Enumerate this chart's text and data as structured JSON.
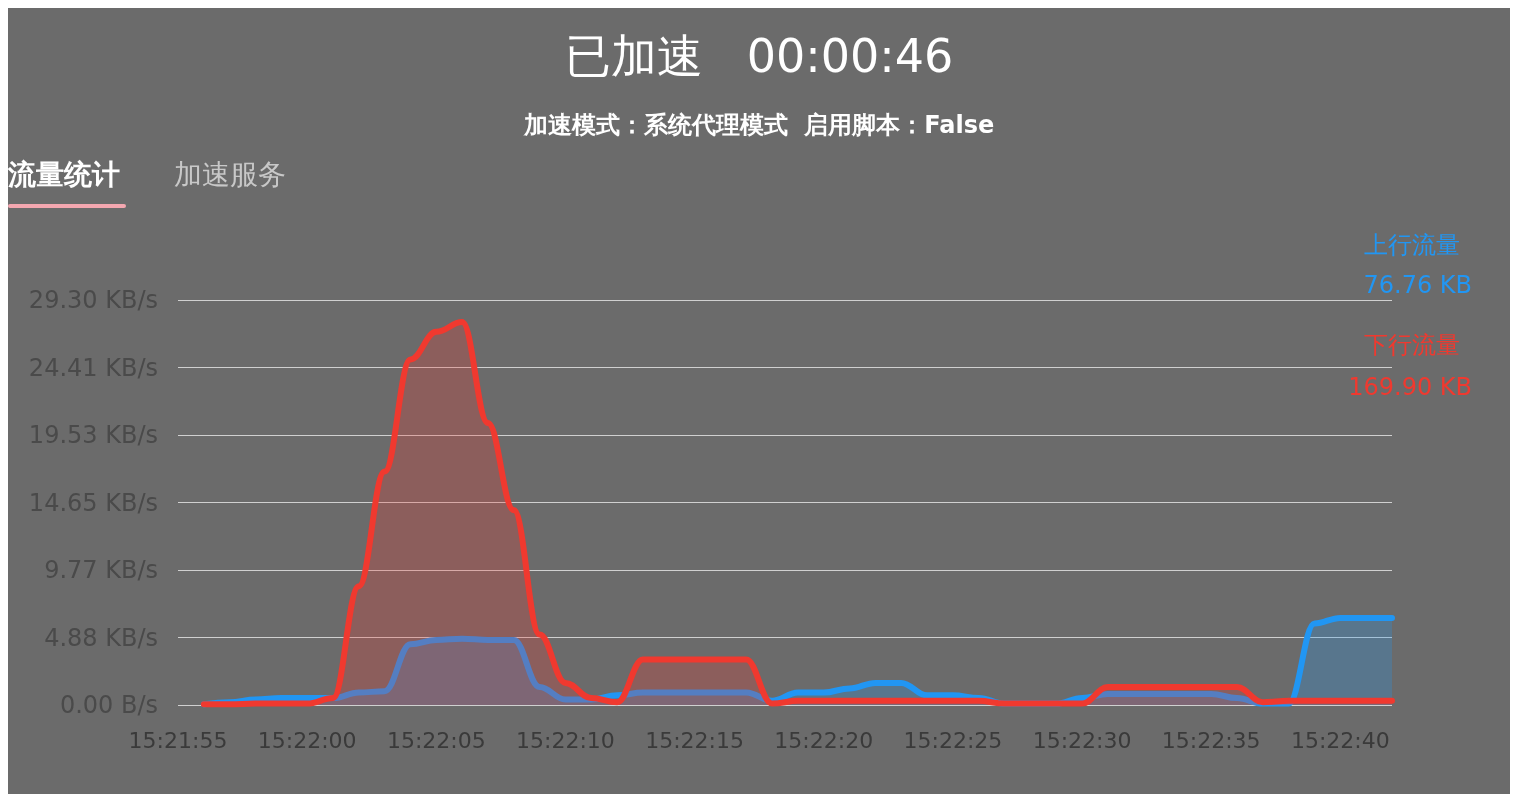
{
  "chart_data": {
    "type": "area",
    "title": "已加速   00:00:46",
    "subtitle": "加速模式：系统代理模式  启用脚本：False",
    "annotations": [
      "流量统计",
      "加速服务",
      "76.76 KB",
      "169.90 KB"
    ],
    "categories": [
      "15:21:55",
      null,
      null,
      null,
      null,
      "15:22:00",
      null,
      null,
      null,
      null,
      "15:22:05",
      null,
      null,
      null,
      null,
      "15:22:10",
      null,
      null,
      null,
      null,
      "15:22:15",
      null,
      null,
      null,
      null,
      "15:22:20",
      null,
      null,
      null,
      null,
      "15:22:25",
      null,
      null,
      null,
      null,
      "15:22:30",
      null,
      null,
      null,
      null,
      "15:22:35",
      null,
      null,
      null,
      null,
      "15:22:40",
      null,
      null
    ],
    "series": [
      {
        "name": "上行流量",
        "color": "#2196f3",
        "values": [
          null,
          0.05,
          0.2,
          0.4,
          0.5,
          0.5,
          0.5,
          0.9,
          1.0,
          4.4,
          4.7,
          4.8,
          4.7,
          4.7,
          1.3,
          0.4,
          0.4,
          0.7,
          0.9,
          0.9,
          0.9,
          0.9,
          0.9,
          0.3,
          0.9,
          0.9,
          1.2,
          1.6,
          1.6,
          0.7,
          0.7,
          0.5,
          0.1,
          0.1,
          0.1,
          0.5,
          0.8,
          0.8,
          0.8,
          0.8,
          0.8,
          0.5,
          0.1,
          0.1,
          5.9,
          6.3,
          6.3,
          6.3
        ]
      },
      {
        "name": "下行流量",
        "color": "#f0392f",
        "values": [
          null,
          0.05,
          0.05,
          0.1,
          0.1,
          0.1,
          0.5,
          8.6,
          16.9,
          25,
          27,
          27.7,
          20.4,
          14.1,
          5.1,
          1.6,
          0.5,
          0.2,
          3.3,
          3.3,
          3.3,
          3.3,
          3.3,
          0.1,
          0.3,
          0.3,
          0.3,
          0.3,
          0.3,
          0.3,
          0.3,
          0.3,
          0.1,
          0.1,
          0.1,
          0.1,
          1.3,
          1.3,
          1.3,
          1.3,
          1.3,
          1.3,
          0.2,
          0.3,
          0.3,
          0.3,
          0.3,
          0.3
        ]
      }
    ],
    "ylim": [
      0,
      29.3
    ],
    "yticks": [
      {
        "value": 0,
        "label": "0.00 B/s"
      },
      {
        "value": 4.88,
        "label": "4.88 KB/s"
      },
      {
        "value": 9.77,
        "label": "9.77 KB/s"
      },
      {
        "value": 14.65,
        "label": "14.65 KB/s"
      },
      {
        "value": 19.53,
        "label": "19.53 KB/s"
      },
      {
        "value": 24.41,
        "label": "24.41 KB/s"
      },
      {
        "value": 29.3,
        "label": "29.30 KB/s"
      }
    ],
    "grid": "y",
    "legend": "top right",
    "marker": "none",
    "line_style": "solid"
  }
}
